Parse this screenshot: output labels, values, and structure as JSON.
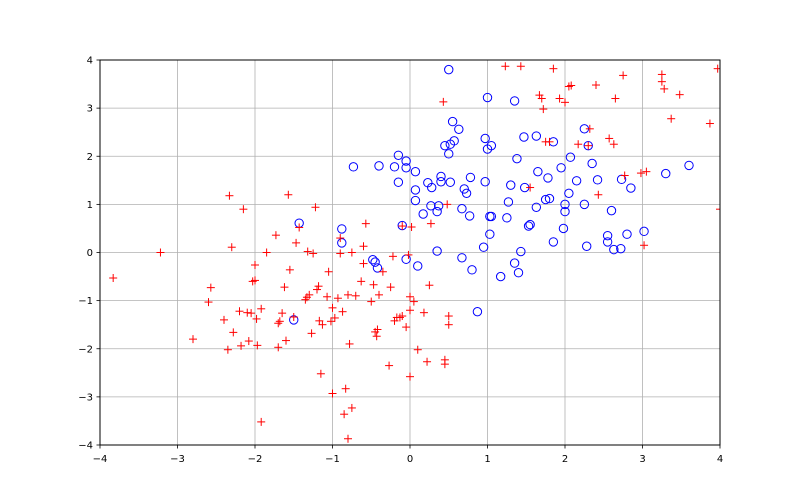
{
  "chart_data": {
    "type": "scatter",
    "title": "",
    "xlabel": "",
    "ylabel": "",
    "xlim": [
      -4,
      4
    ],
    "ylim": [
      -4,
      4
    ],
    "xticks": [
      -4,
      -3,
      -2,
      -1,
      0,
      1,
      2,
      3,
      4
    ],
    "yticks": [
      -4,
      -3,
      -2,
      -1,
      0,
      1,
      2,
      3,
      4
    ],
    "xtick_labels": [
      "−4",
      "−3",
      "−2",
      "−1",
      "0",
      "1",
      "2",
      "3",
      "4"
    ],
    "ytick_labels": [
      "−4",
      "−3",
      "−2",
      "−1",
      "0",
      "1",
      "2",
      "3",
      "4"
    ],
    "grid": true,
    "legend": null,
    "series": [
      {
        "marker": "circle-open",
        "color": "#0000ff",
        "points": [
          [
            0.5,
            3.8
          ],
          [
            1.0,
            3.22
          ],
          [
            1.35,
            3.15
          ],
          [
            0.55,
            2.72
          ],
          [
            0.63,
            2.56
          ],
          [
            0.45,
            2.22
          ],
          [
            0.52,
            2.25
          ],
          [
            0.57,
            2.32
          ],
          [
            0.5,
            2.05
          ],
          [
            0.97,
            2.37
          ],
          [
            1.0,
            2.15
          ],
          [
            1.05,
            2.22
          ],
          [
            1.3,
            1.4
          ],
          [
            1.38,
            1.95
          ],
          [
            1.47,
            2.4
          ],
          [
            1.63,
            2.42
          ],
          [
            1.85,
            2.3
          ],
          [
            1.95,
            1.76
          ],
          [
            2.07,
            1.98
          ],
          [
            2.15,
            1.49
          ],
          [
            2.25,
            2.57
          ],
          [
            2.3,
            2.22
          ],
          [
            2.35,
            1.85
          ],
          [
            2.42,
            1.51
          ],
          [
            2.55,
            0.35
          ],
          [
            2.55,
            0.22
          ],
          [
            2.6,
            0.87
          ],
          [
            2.63,
            0.06
          ],
          [
            2.72,
            0.08
          ],
          [
            2.73,
            1.52
          ],
          [
            2.8,
            0.38
          ],
          [
            2.85,
            1.34
          ],
          [
            3.02,
            0.44
          ],
          [
            3.3,
            1.64
          ],
          [
            3.6,
            1.81
          ],
          [
            2.05,
            1.23
          ],
          [
            2.0,
            1.0
          ],
          [
            2.0,
            0.85
          ],
          [
            2.25,
            1.0
          ],
          [
            2.28,
            0.13
          ],
          [
            1.98,
            0.5
          ],
          [
            1.85,
            0.22
          ],
          [
            1.75,
            1.1
          ],
          [
            1.8,
            1.12
          ],
          [
            1.78,
            1.55
          ],
          [
            1.65,
            1.68
          ],
          [
            1.63,
            0.94
          ],
          [
            1.53,
            0.55
          ],
          [
            1.55,
            0.58
          ],
          [
            1.48,
            1.35
          ],
          [
            1.43,
            0.02
          ],
          [
            1.4,
            -0.42
          ],
          [
            1.35,
            -0.22
          ],
          [
            1.25,
            0.72
          ],
          [
            1.27,
            1.05
          ],
          [
            1.17,
            -0.5
          ],
          [
            1.03,
            0.75
          ],
          [
            1.05,
            0.75
          ],
          [
            1.03,
            0.38
          ],
          [
            0.95,
            0.11
          ],
          [
            0.97,
            1.47
          ],
          [
            0.87,
            -1.23
          ],
          [
            0.78,
            1.56
          ],
          [
            0.77,
            0.76
          ],
          [
            0.8,
            -0.36
          ],
          [
            0.73,
            1.23
          ],
          [
            0.7,
            1.32
          ],
          [
            0.67,
            0.91
          ],
          [
            0.67,
            -0.11
          ],
          [
            0.52,
            1.46
          ],
          [
            0.4,
            1.58
          ],
          [
            0.4,
            1.47
          ],
          [
            0.37,
            0.97
          ],
          [
            0.35,
            0.85
          ],
          [
            0.35,
            0.03
          ],
          [
            0.27,
            0.97
          ],
          [
            0.23,
            1.45
          ],
          [
            0.28,
            1.35
          ],
          [
            0.17,
            0.8
          ],
          [
            0.1,
            -0.28
          ],
          [
            0.07,
            1.68
          ],
          [
            0.07,
            1.3
          ],
          [
            0.07,
            1.08
          ],
          [
            -0.05,
            1.76
          ],
          [
            -0.05,
            1.9
          ],
          [
            -0.05,
            -0.14
          ],
          [
            -0.1,
            0.56
          ],
          [
            -0.15,
            1.46
          ],
          [
            -0.15,
            2.02
          ],
          [
            -0.2,
            1.78
          ],
          [
            -0.4,
            1.8
          ],
          [
            -0.42,
            -0.32
          ],
          [
            -0.45,
            -0.2
          ],
          [
            -0.48,
            -0.15
          ],
          [
            -0.73,
            1.78
          ],
          [
            -0.88,
            0.2
          ],
          [
            -0.88,
            0.49
          ],
          [
            -1.43,
            0.61
          ],
          [
            -1.5,
            -1.4
          ]
        ]
      },
      {
        "marker": "plus",
        "color": "#ff0000",
        "points": [
          [
            -3.83,
            -0.53
          ],
          [
            -3.22,
            0.0
          ],
          [
            -2.8,
            -1.8
          ],
          [
            -2.6,
            -1.03
          ],
          [
            -2.57,
            -0.73
          ],
          [
            -2.4,
            -1.4
          ],
          [
            -2.35,
            -2.02
          ],
          [
            -2.33,
            1.18
          ],
          [
            -2.3,
            0.11
          ],
          [
            -2.28,
            -1.66
          ],
          [
            -2.2,
            -1.22
          ],
          [
            -2.18,
            -1.94
          ],
          [
            -2.15,
            0.9
          ],
          [
            -2.1,
            -1.25
          ],
          [
            -2.08,
            -1.84
          ],
          [
            -2.05,
            -1.26
          ],
          [
            -2.03,
            -0.6
          ],
          [
            -2.0,
            -0.58
          ],
          [
            -2.0,
            -0.26
          ],
          [
            -1.98,
            -1.38
          ],
          [
            -1.97,
            -1.93
          ],
          [
            -1.92,
            -3.52
          ],
          [
            -1.92,
            -1.17
          ],
          [
            -1.85,
            0.0
          ],
          [
            -1.73,
            0.36
          ],
          [
            -1.7,
            -1.47
          ],
          [
            -1.7,
            -1.97
          ],
          [
            -1.68,
            -1.43
          ],
          [
            -1.65,
            -1.26
          ],
          [
            -1.62,
            -0.72
          ],
          [
            -1.6,
            -1.83
          ],
          [
            -1.57,
            1.2
          ],
          [
            -1.55,
            -0.36
          ],
          [
            -1.5,
            -1.34
          ],
          [
            -1.47,
            0.2
          ],
          [
            -1.43,
            0.52
          ],
          [
            -1.35,
            -0.98
          ],
          [
            -1.33,
            -0.93
          ],
          [
            -1.32,
            0.02
          ],
          [
            -1.3,
            -0.88
          ],
          [
            -1.27,
            -1.68
          ],
          [
            -1.25,
            -0.02
          ],
          [
            -1.22,
            0.94
          ],
          [
            -1.2,
            -0.77
          ],
          [
            -1.18,
            -0.7
          ],
          [
            -1.17,
            -1.42
          ],
          [
            -1.15,
            -2.52
          ],
          [
            -1.13,
            -1.5
          ],
          [
            -1.07,
            -0.92
          ],
          [
            -1.05,
            -0.4
          ],
          [
            -1.02,
            -1.43
          ],
          [
            -1.0,
            -2.93
          ],
          [
            -1.0,
            -1.15
          ],
          [
            -0.97,
            -1.36
          ],
          [
            -0.93,
            -0.95
          ],
          [
            -0.9,
            0.3
          ],
          [
            -0.9,
            -0.02
          ],
          [
            -0.87,
            -1.23
          ],
          [
            -0.85,
            -3.36
          ],
          [
            -0.83,
            -2.83
          ],
          [
            -0.8,
            -0.88
          ],
          [
            -0.8,
            -3.87
          ],
          [
            -0.78,
            -1.9
          ],
          [
            -0.75,
            -3.23
          ],
          [
            -0.75,
            0.0
          ],
          [
            -0.7,
            -0.9
          ],
          [
            -0.63,
            -0.6
          ],
          [
            -0.6,
            -0.23
          ],
          [
            -0.6,
            0.13
          ],
          [
            -0.57,
            0.6
          ],
          [
            -0.5,
            -1.02
          ],
          [
            -0.47,
            -0.67
          ],
          [
            -0.45,
            -1.65
          ],
          [
            -0.43,
            -1.74
          ],
          [
            -0.42,
            -1.6
          ],
          [
            -0.4,
            -0.88
          ],
          [
            -0.35,
            -0.4
          ],
          [
            -0.27,
            -2.35
          ],
          [
            -0.25,
            -0.72
          ],
          [
            -0.22,
            -0.08
          ],
          [
            -0.2,
            -1.42
          ],
          [
            -0.17,
            -1.35
          ],
          [
            -0.13,
            -1.35
          ],
          [
            -0.1,
            -1.32
          ],
          [
            -0.1,
            0.55
          ],
          [
            -0.05,
            -1.55
          ],
          [
            -0.02,
            -0.05
          ],
          [
            0.0,
            -2.58
          ],
          [
            0.0,
            -0.92
          ],
          [
            0.0,
            -1.2
          ],
          [
            0.02,
            0.53
          ],
          [
            0.05,
            -1.02
          ],
          [
            0.1,
            -2.02
          ],
          [
            0.18,
            -1.25
          ],
          [
            0.22,
            -2.27
          ],
          [
            0.25,
            -0.68
          ],
          [
            0.27,
            0.6
          ],
          [
            0.43,
            3.13
          ],
          [
            0.45,
            -2.32
          ],
          [
            0.45,
            -2.23
          ],
          [
            0.5,
            -1.5
          ],
          [
            0.5,
            -1.32
          ],
          [
            0.48,
            1.0
          ],
          [
            1.23,
            3.87
          ],
          [
            1.43,
            3.87
          ],
          [
            1.55,
            1.35
          ],
          [
            1.67,
            3.27
          ],
          [
            1.7,
            3.2
          ],
          [
            1.72,
            2.98
          ],
          [
            1.75,
            2.3
          ],
          [
            1.8,
            2.3
          ],
          [
            1.85,
            3.82
          ],
          [
            1.93,
            3.2
          ],
          [
            2.0,
            3.12
          ],
          [
            2.05,
            3.45
          ],
          [
            2.08,
            3.47
          ],
          [
            2.17,
            2.25
          ],
          [
            2.3,
            2.22
          ],
          [
            2.32,
            2.57
          ],
          [
            2.4,
            3.48
          ],
          [
            2.43,
            1.2
          ],
          [
            2.57,
            2.37
          ],
          [
            2.63,
            2.25
          ],
          [
            2.65,
            3.2
          ],
          [
            2.75,
            3.68
          ],
          [
            2.77,
            1.6
          ],
          [
            2.98,
            1.65
          ],
          [
            3.02,
            0.15
          ],
          [
            3.05,
            1.68
          ],
          [
            3.25,
            3.7
          ],
          [
            3.25,
            3.55
          ],
          [
            3.28,
            3.4
          ],
          [
            3.37,
            2.78
          ],
          [
            3.48,
            3.28
          ],
          [
            3.87,
            2.68
          ],
          [
            3.97,
            3.82
          ],
          [
            4.0,
            0.9
          ]
        ]
      }
    ]
  }
}
